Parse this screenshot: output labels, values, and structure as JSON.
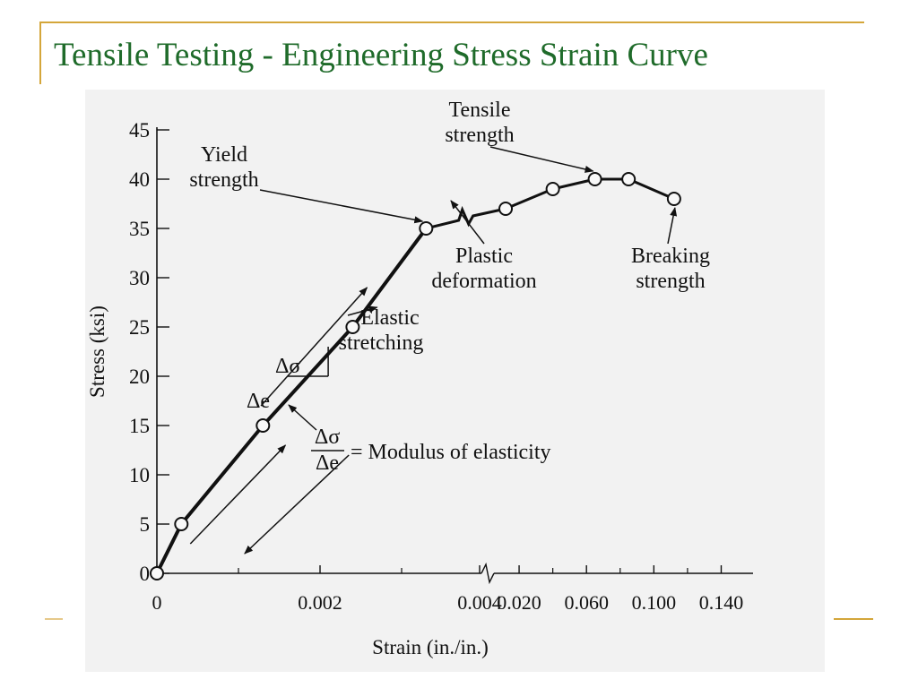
{
  "slide": {
    "title": "Tensile Testing - Engineering Stress Strain Curve"
  },
  "chart_data": {
    "type": "line",
    "ylabel": "Stress (ksi)",
    "xlabel": "Strain (in./in.)",
    "y_ticks": [
      "0",
      "5",
      "10",
      "15",
      "20",
      "25",
      "30",
      "35",
      "40",
      "45"
    ],
    "x_ticks": [
      "0",
      "0.002",
      "0.004",
      "0.020",
      "0.060",
      "0.100",
      "0.140"
    ],
    "ylim": [
      0,
      45
    ],
    "x_axis_note": "axis broken after 0.004; two scales",
    "series": [
      {
        "points": [
          {
            "x": 0,
            "y": 0
          },
          {
            "x": 0.0003,
            "y": 5
          },
          {
            "x": 0.0013,
            "y": 15
          },
          {
            "x": 0.0024,
            "y": 25
          },
          {
            "x": 0.0033,
            "y": 35
          },
          {
            "x": 0.012,
            "y": 37
          },
          {
            "x": 0.04,
            "y": 39
          },
          {
            "x": 0.065,
            "y": 40
          },
          {
            "x": 0.085,
            "y": 40
          },
          {
            "x": 0.112,
            "y": 38
          }
        ]
      }
    ],
    "annotations": [
      {
        "name": "yield-strength",
        "text": [
          "Yield",
          "strength"
        ]
      },
      {
        "name": "tensile-strength",
        "text": [
          "Tensile",
          "strength"
        ]
      },
      {
        "name": "plastic-deformation",
        "text": [
          "Plastic",
          "deformation"
        ]
      },
      {
        "name": "breaking-strength",
        "text": [
          "Breaking",
          "strength"
        ]
      },
      {
        "name": "elastic-stretching",
        "text": [
          "Elastic",
          "stretching"
        ]
      },
      {
        "name": "delta-sigma",
        "text": [
          "Δσ"
        ]
      },
      {
        "name": "delta-e",
        "text": [
          "Δe"
        ]
      },
      {
        "name": "modulus",
        "text": [
          "Δσ",
          "Δe",
          "= Modulus of elasticity"
        ]
      }
    ]
  }
}
